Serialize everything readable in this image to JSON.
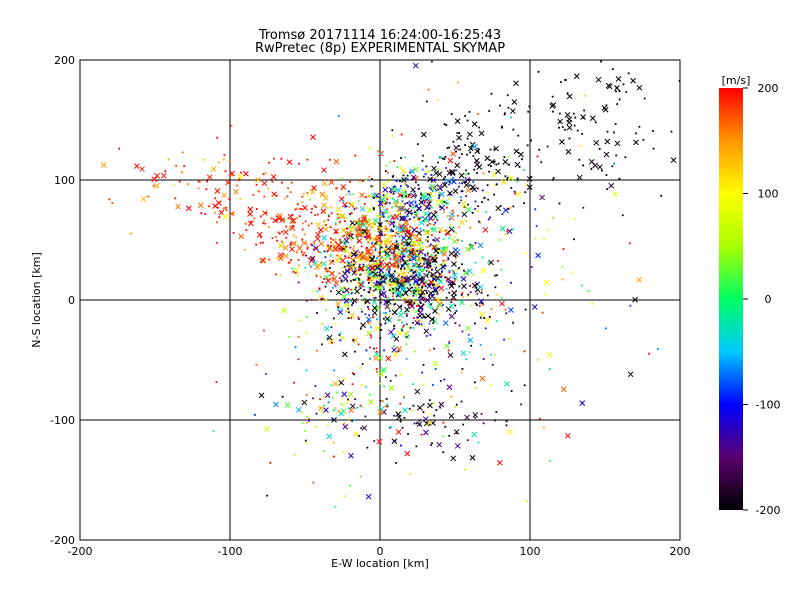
{
  "chart_data": {
    "type": "scatter",
    "title": "Tromsø 20171114 16:24:00-16:25:43",
    "subtitle": "RwPretec (8p) EXPERIMENTAL SKYMAP",
    "xlabel": "E-W location [km]",
    "ylabel": "N-S location [km]",
    "xlim": [
      -200,
      200
    ],
    "ylim": [
      -200,
      200
    ],
    "x_ticks": [
      "-200",
      "-100",
      "0",
      "100",
      "200"
    ],
    "y_ticks": [
      "-200",
      "-100",
      "0",
      "100",
      "200"
    ],
    "grid": true,
    "colorbar": {
      "label": "[m/s]",
      "range": [
        -200,
        200
      ],
      "ticks": [
        "200",
        "100",
        "0",
        "-100",
        "-200"
      ],
      "colormap": [
        "#000000",
        "#5a006e",
        "#0000ff",
        "#00c8ff",
        "#00ff64",
        "#aaff00",
        "#ffff00",
        "#ff9600",
        "#ff0000"
      ]
    },
    "clusters": [
      {
        "cx": 10,
        "cy": 30,
        "sx": 25,
        "sy": 28,
        "n": 900,
        "vel_mean": 0,
        "vel_sd": 130
      },
      {
        "cx": -10,
        "cy": 50,
        "sx": 30,
        "sy": 25,
        "n": 350,
        "vel_mean": 170,
        "vel_sd": 40
      },
      {
        "cx": -55,
        "cy": 60,
        "sx": 25,
        "sy": 20,
        "n": 120,
        "vel_mean": 200,
        "vel_sd": 20
      },
      {
        "cx": 30,
        "cy": 90,
        "sx": 22,
        "sy": 12,
        "n": 200,
        "vel_mean": -60,
        "vel_sd": 120
      },
      {
        "cx": 60,
        "cy": 110,
        "sx": 20,
        "sy": 20,
        "n": 120,
        "vel_mean": -200,
        "vel_sd": 10
      },
      {
        "cx": -110,
        "cy": 100,
        "sx": 30,
        "sy": 18,
        "n": 90,
        "vel_mean": 185,
        "vel_sd": 35
      },
      {
        "cx": 140,
        "cy": 150,
        "sx": 35,
        "sy": 35,
        "n": 130,
        "vel_mean": -200,
        "vel_sd": 10
      },
      {
        "cx": 20,
        "cy": 10,
        "sx": 25,
        "sy": 18,
        "n": 250,
        "vel_mean": -200,
        "vel_sd": 60
      },
      {
        "cx": -30,
        "cy": -90,
        "sx": 20,
        "sy": 12,
        "n": 60,
        "vel_mean": 0,
        "vel_sd": 120
      },
      {
        "cx": 40,
        "cy": -100,
        "sx": 25,
        "sy": 15,
        "n": 60,
        "vel_mean": -200,
        "vel_sd": 30
      },
      {
        "cx": 0,
        "cy": -60,
        "sx": 40,
        "sy": 45,
        "n": 160,
        "vel_mean": 0,
        "vel_sd": 160
      },
      {
        "cx": 60,
        "cy": 40,
        "sx": 60,
        "sy": 90,
        "n": 160,
        "vel_mean": 0,
        "vel_sd": 180
      }
    ],
    "seed": 20171114
  }
}
